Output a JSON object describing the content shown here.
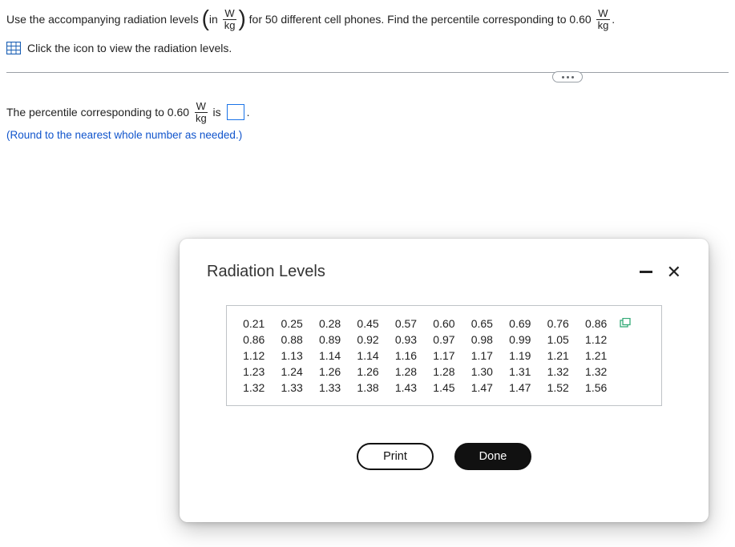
{
  "question": {
    "part1": "Use the accompanying radiation levels ",
    "in": "in ",
    "unit_num": "W",
    "unit_den": "kg",
    "part2": " for 50 different cell phones. Find the percentile corresponding to 0.60 ",
    "period": ".",
    "icon_line": "Click the icon to view the radiation levels."
  },
  "answer": {
    "part1": "The percentile corresponding to 0.60 ",
    "is": " is ",
    "period": ".",
    "hint": "(Round to the nearest whole number as needed.)"
  },
  "modal": {
    "title": "Radiation Levels",
    "rows": [
      [
        "0.21",
        "0.25",
        "0.28",
        "0.45",
        "0.57",
        "0.60",
        "0.65",
        "0.69",
        "0.76",
        "0.86"
      ],
      [
        "0.86",
        "0.88",
        "0.89",
        "0.92",
        "0.93",
        "0.97",
        "0.98",
        "0.99",
        "1.05",
        "1.12"
      ],
      [
        "1.12",
        "1.13",
        "1.14",
        "1.14",
        "1.16",
        "1.17",
        "1.17",
        "1.19",
        "1.21",
        "1.21"
      ],
      [
        "1.23",
        "1.24",
        "1.26",
        "1.26",
        "1.28",
        "1.28",
        "1.30",
        "1.31",
        "1.32",
        "1.32"
      ],
      [
        "1.32",
        "1.33",
        "1.33",
        "1.38",
        "1.43",
        "1.45",
        "1.47",
        "1.47",
        "1.52",
        "1.56"
      ]
    ],
    "print": "Print",
    "done": "Done"
  },
  "colors": {
    "link": "#1155cc",
    "icon_blue": "#1a5fb4",
    "input_border": "#1a73e8",
    "btn_dark": "#111111"
  }
}
